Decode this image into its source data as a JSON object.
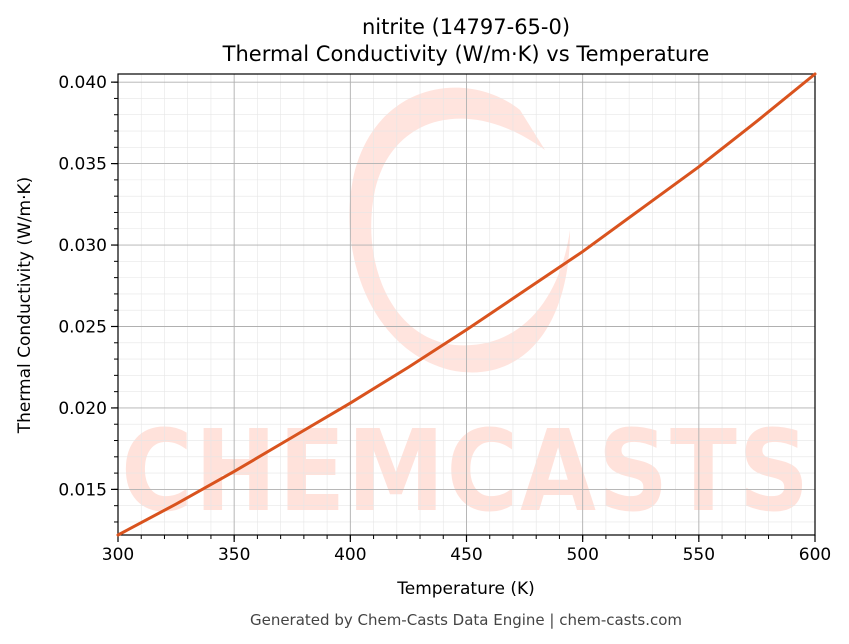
{
  "chart_data": {
    "type": "line",
    "title": "nitrite (14797-65-0)",
    "subtitle": "Thermal Conductivity (W/m·K) vs Temperature",
    "xlabel": "Temperature (K)",
    "ylabel": "Thermal Conductivity (W/m·K)",
    "xlim": [
      300,
      600
    ],
    "ylim": [
      0.0122,
      0.0405
    ],
    "xticks": [
      300,
      350,
      400,
      450,
      500,
      550,
      600
    ],
    "xtick_labels": [
      "300",
      "350",
      "400",
      "450",
      "500",
      "550",
      "600"
    ],
    "yticks": [
      0.015,
      0.02,
      0.025,
      0.03,
      0.035,
      0.04
    ],
    "ytick_labels": [
      "0.015",
      "0.020",
      "0.025",
      "0.030",
      "0.035",
      "0.040"
    ],
    "grid": true,
    "series": [
      {
        "color": "#d9531e",
        "x": [
          300,
          325,
          350,
          375,
          400,
          425,
          450,
          475,
          500,
          525,
          550,
          575,
          600
        ],
        "y": [
          0.0122,
          0.0141,
          0.0161,
          0.0182,
          0.0203,
          0.0225,
          0.0248,
          0.0272,
          0.0296,
          0.0322,
          0.0348,
          0.0376,
          0.0405
        ]
      }
    ]
  },
  "watermark": {
    "text": "CHEMCASTS",
    "color": "#ffd9d0"
  },
  "footer": "Generated by Chem-Casts Data Engine | chem-casts.com"
}
